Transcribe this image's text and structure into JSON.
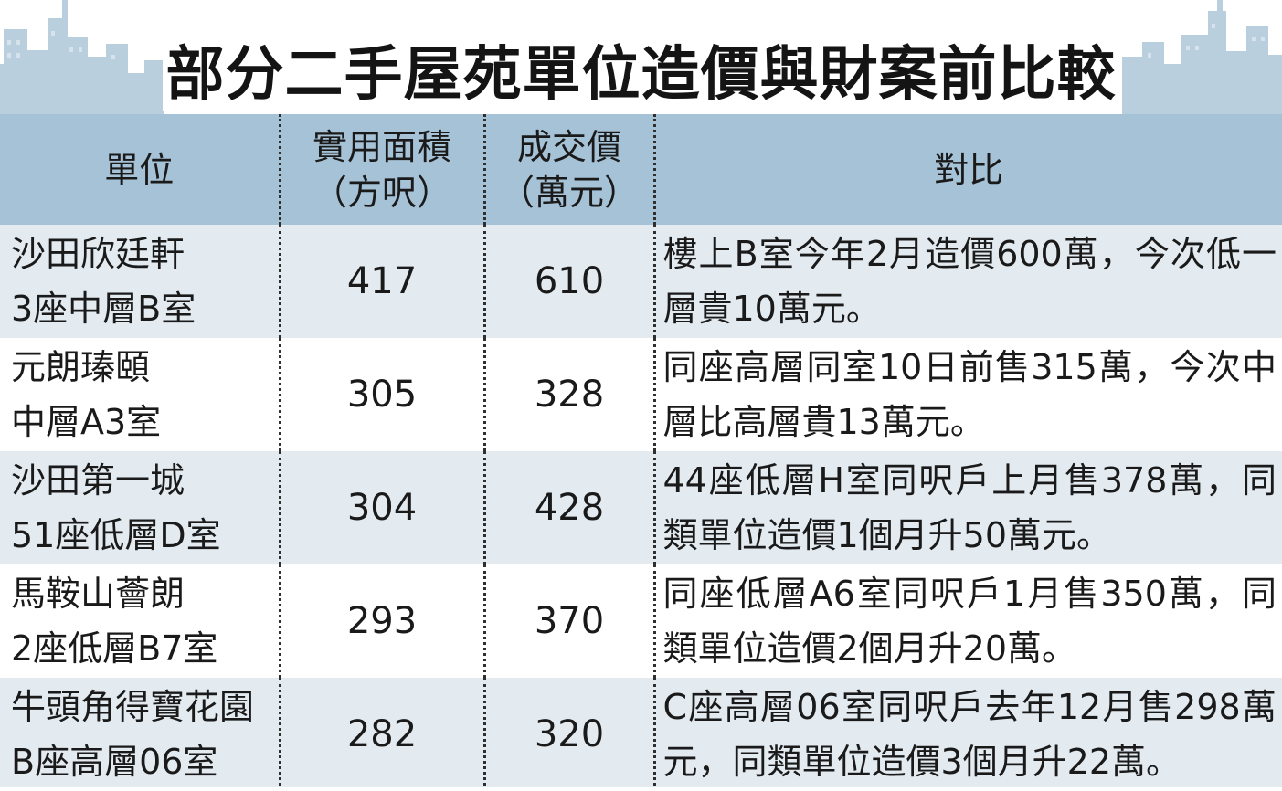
{
  "title": "部分二手屋苑單位造價與財案前比較",
  "colors": {
    "header_bg": "#a6c2d6",
    "row_alt_bg": "#e3ebf1",
    "skyline": "#b9cfdd"
  },
  "headers": {
    "unit": "單位",
    "area_line1": "實用面積",
    "area_line2": "（方呎）",
    "price_line1": "成交價",
    "price_line2": "（萬元）",
    "compare": "對比"
  },
  "rows": [
    {
      "name_line1": "沙田欣廷軒",
      "name_line2": "3座中層B室",
      "area": "417",
      "price": "610",
      "compare": "樓上B室今年2月造價600萬，今次低一層貴10萬元。"
    },
    {
      "name_line1": "元朗瑧頤",
      "name_line2": "中層A3室",
      "area": "305",
      "price": "328",
      "compare": "同座高層同室10日前售315萬，今次中層比高層貴13萬元。"
    },
    {
      "name_line1": "沙田第一城",
      "name_line2": "51座低層D室",
      "area": "304",
      "price": "428",
      "compare": "44座低層H室同呎戶上月售378萬，同類單位造價1個月升50萬元。"
    },
    {
      "name_line1": "馬鞍山薈朗",
      "name_line2": "2座低層B7室",
      "area": "293",
      "price": "370",
      "compare": "同座低層A6室同呎戶1月售350萬，同類單位造價2個月升20萬。"
    },
    {
      "name_line1": "牛頭角得寶花園",
      "name_line2": "B座高層06室",
      "area": "282",
      "price": "320",
      "compare": "C座高層06室同呎戶去年12月售298萬元，同類單位造價3個月升22萬。"
    }
  ]
}
